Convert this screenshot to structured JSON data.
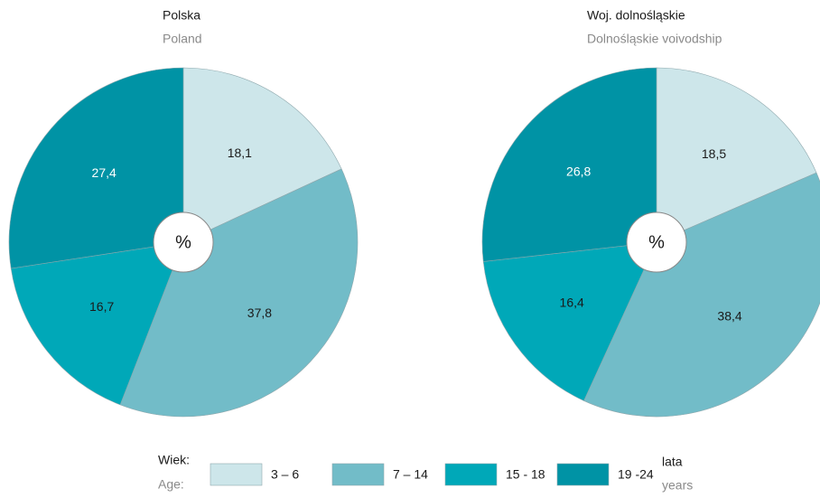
{
  "chart_data": [
    {
      "type": "pie",
      "title": "Polska",
      "subtitle": "Poland",
      "center_label": "%",
      "categories": [
        "3 – 6",
        "7 – 14",
        "15 - 18",
        "19 -24"
      ],
      "values": [
        18.1,
        37.8,
        16.7,
        27.4
      ],
      "value_labels": [
        "18,1",
        "37,8",
        "16,7",
        "27,4"
      ],
      "colors": [
        "#cde6ea",
        "#72bcc8",
        "#00a8b8",
        "#0093a5"
      ]
    },
    {
      "type": "pie",
      "title": "Woj. dolnośląskie",
      "subtitle": "Dolnośląskie voivodship",
      "center_label": "%",
      "categories": [
        "3 – 6",
        "7 – 14",
        "15 - 18",
        "19 -24"
      ],
      "values": [
        18.5,
        38.4,
        16.4,
        26.8
      ],
      "value_labels": [
        "18,5",
        "38,4",
        "16,4",
        "26,8"
      ],
      "colors": [
        "#cde6ea",
        "#72bcc8",
        "#00a8b8",
        "#0093a5"
      ]
    }
  ],
  "legend": {
    "title": "Wiek:",
    "subtitle": "Age:",
    "unit": "lata",
    "unit_subtitle": "years"
  }
}
